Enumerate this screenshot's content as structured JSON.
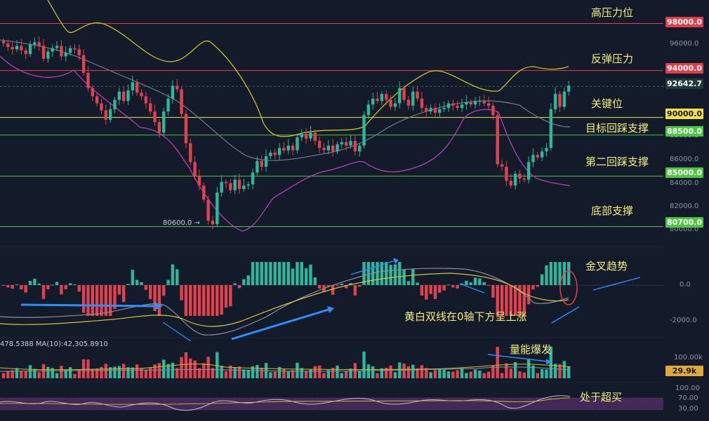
{
  "price_panel": {
    "levels": [
      {
        "value": 98000,
        "label": "98000.0",
        "color": "#e53c4a",
        "text_color": "#ffffff"
      },
      {
        "value": 94000,
        "label": "94000.0",
        "color": "#e53c4a",
        "text_color": "#ffffff"
      },
      {
        "value": 92642.7,
        "label": "92642.7",
        "color": "#1f3b3a",
        "text_color": "#ffffff",
        "dashed": true
      },
      {
        "value": 90000,
        "label": "90000.0",
        "color": "#f2e24a",
        "text_color": "#1a1a1a"
      },
      {
        "value": 88500,
        "label": "88500.0",
        "color": "#4cc63f",
        "text_color": "#ffffff"
      },
      {
        "value": 85000,
        "label": "85000.0",
        "color": "#4cc63f",
        "text_color": "#ffffff"
      },
      {
        "value": 80700,
        "label": "80700.0",
        "color": "#4cc63f",
        "text_color": "#ffffff"
      }
    ],
    "axis_ticks": [
      "96000.0",
      "88000.0",
      "86000.0",
      "84000.0",
      "82000.0",
      "80000.0"
    ],
    "annotations": [
      "高压力位",
      "反弹压力",
      "关键位",
      "目标回踩支撑",
      "第二回踩支撑",
      "底部支撑"
    ],
    "low_marker": "80600.0 →"
  },
  "macd_panel": {
    "axis_ticks": [
      "0.0",
      "-2000.0"
    ],
    "annotations": [
      "金叉趋势",
      "黄白双线在0轴下方呈上涨"
    ]
  },
  "volume_panel": {
    "indicator_text": "478.5388  MA(10):42,305.8910",
    "axis_ticks": [
      "100.00k"
    ],
    "current_value": "29.9k",
    "annotation": "量能爆发"
  },
  "rsi_panel": {
    "axis_ticks": [
      "100.00",
      "70.00",
      "30.00"
    ],
    "annotation": "处于超买"
  },
  "chart_data": [
    {
      "type": "candlestick",
      "title": "",
      "xlabel": "",
      "ylabel": "",
      "ylim": [
        79000,
        100000
      ],
      "close": [
        96300,
        96000,
        95800,
        96100,
        95700,
        95400,
        96200,
        96400,
        96100,
        95000,
        95600,
        95900,
        96100,
        95200,
        95500,
        95900,
        95800,
        95300,
        93800,
        92500,
        91800,
        91200,
        90600,
        89800,
        90700,
        91500,
        92200,
        91400,
        92300,
        93000,
        92100,
        91800,
        91200,
        90500,
        89600,
        88700,
        90500,
        91600,
        92700,
        92400,
        90300,
        87800,
        86200,
        85000,
        84200,
        83000,
        81200,
        80900,
        83600,
        84500,
        84400,
        83800,
        84700,
        83900,
        84200,
        84300,
        85300,
        86300,
        85800,
        86700,
        87000,
        86800,
        87400,
        87200,
        87600,
        87200,
        88300,
        88600,
        88200,
        88700,
        88000,
        87400,
        87200,
        87600,
        87100,
        87700,
        87900,
        87600,
        88000,
        87100,
        87600,
        90200,
        91100,
        91600,
        91400,
        92000,
        91500,
        90900,
        91200,
        92500,
        91500,
        91000,
        92200,
        91600,
        90800,
        90500,
        90800,
        90400,
        90700,
        90800,
        91200,
        91000,
        90800,
        91100,
        91300,
        91100,
        91400,
        91400,
        91200,
        91000,
        90200,
        86000,
        85800,
        84600,
        84200,
        85200,
        84800,
        84700,
        86200,
        86800,
        86600,
        87100,
        87400,
        90700,
        92000,
        90900,
        92200,
        92700
      ]
    },
    {
      "type": "line",
      "title": "",
      "series": []
    }
  ]
}
